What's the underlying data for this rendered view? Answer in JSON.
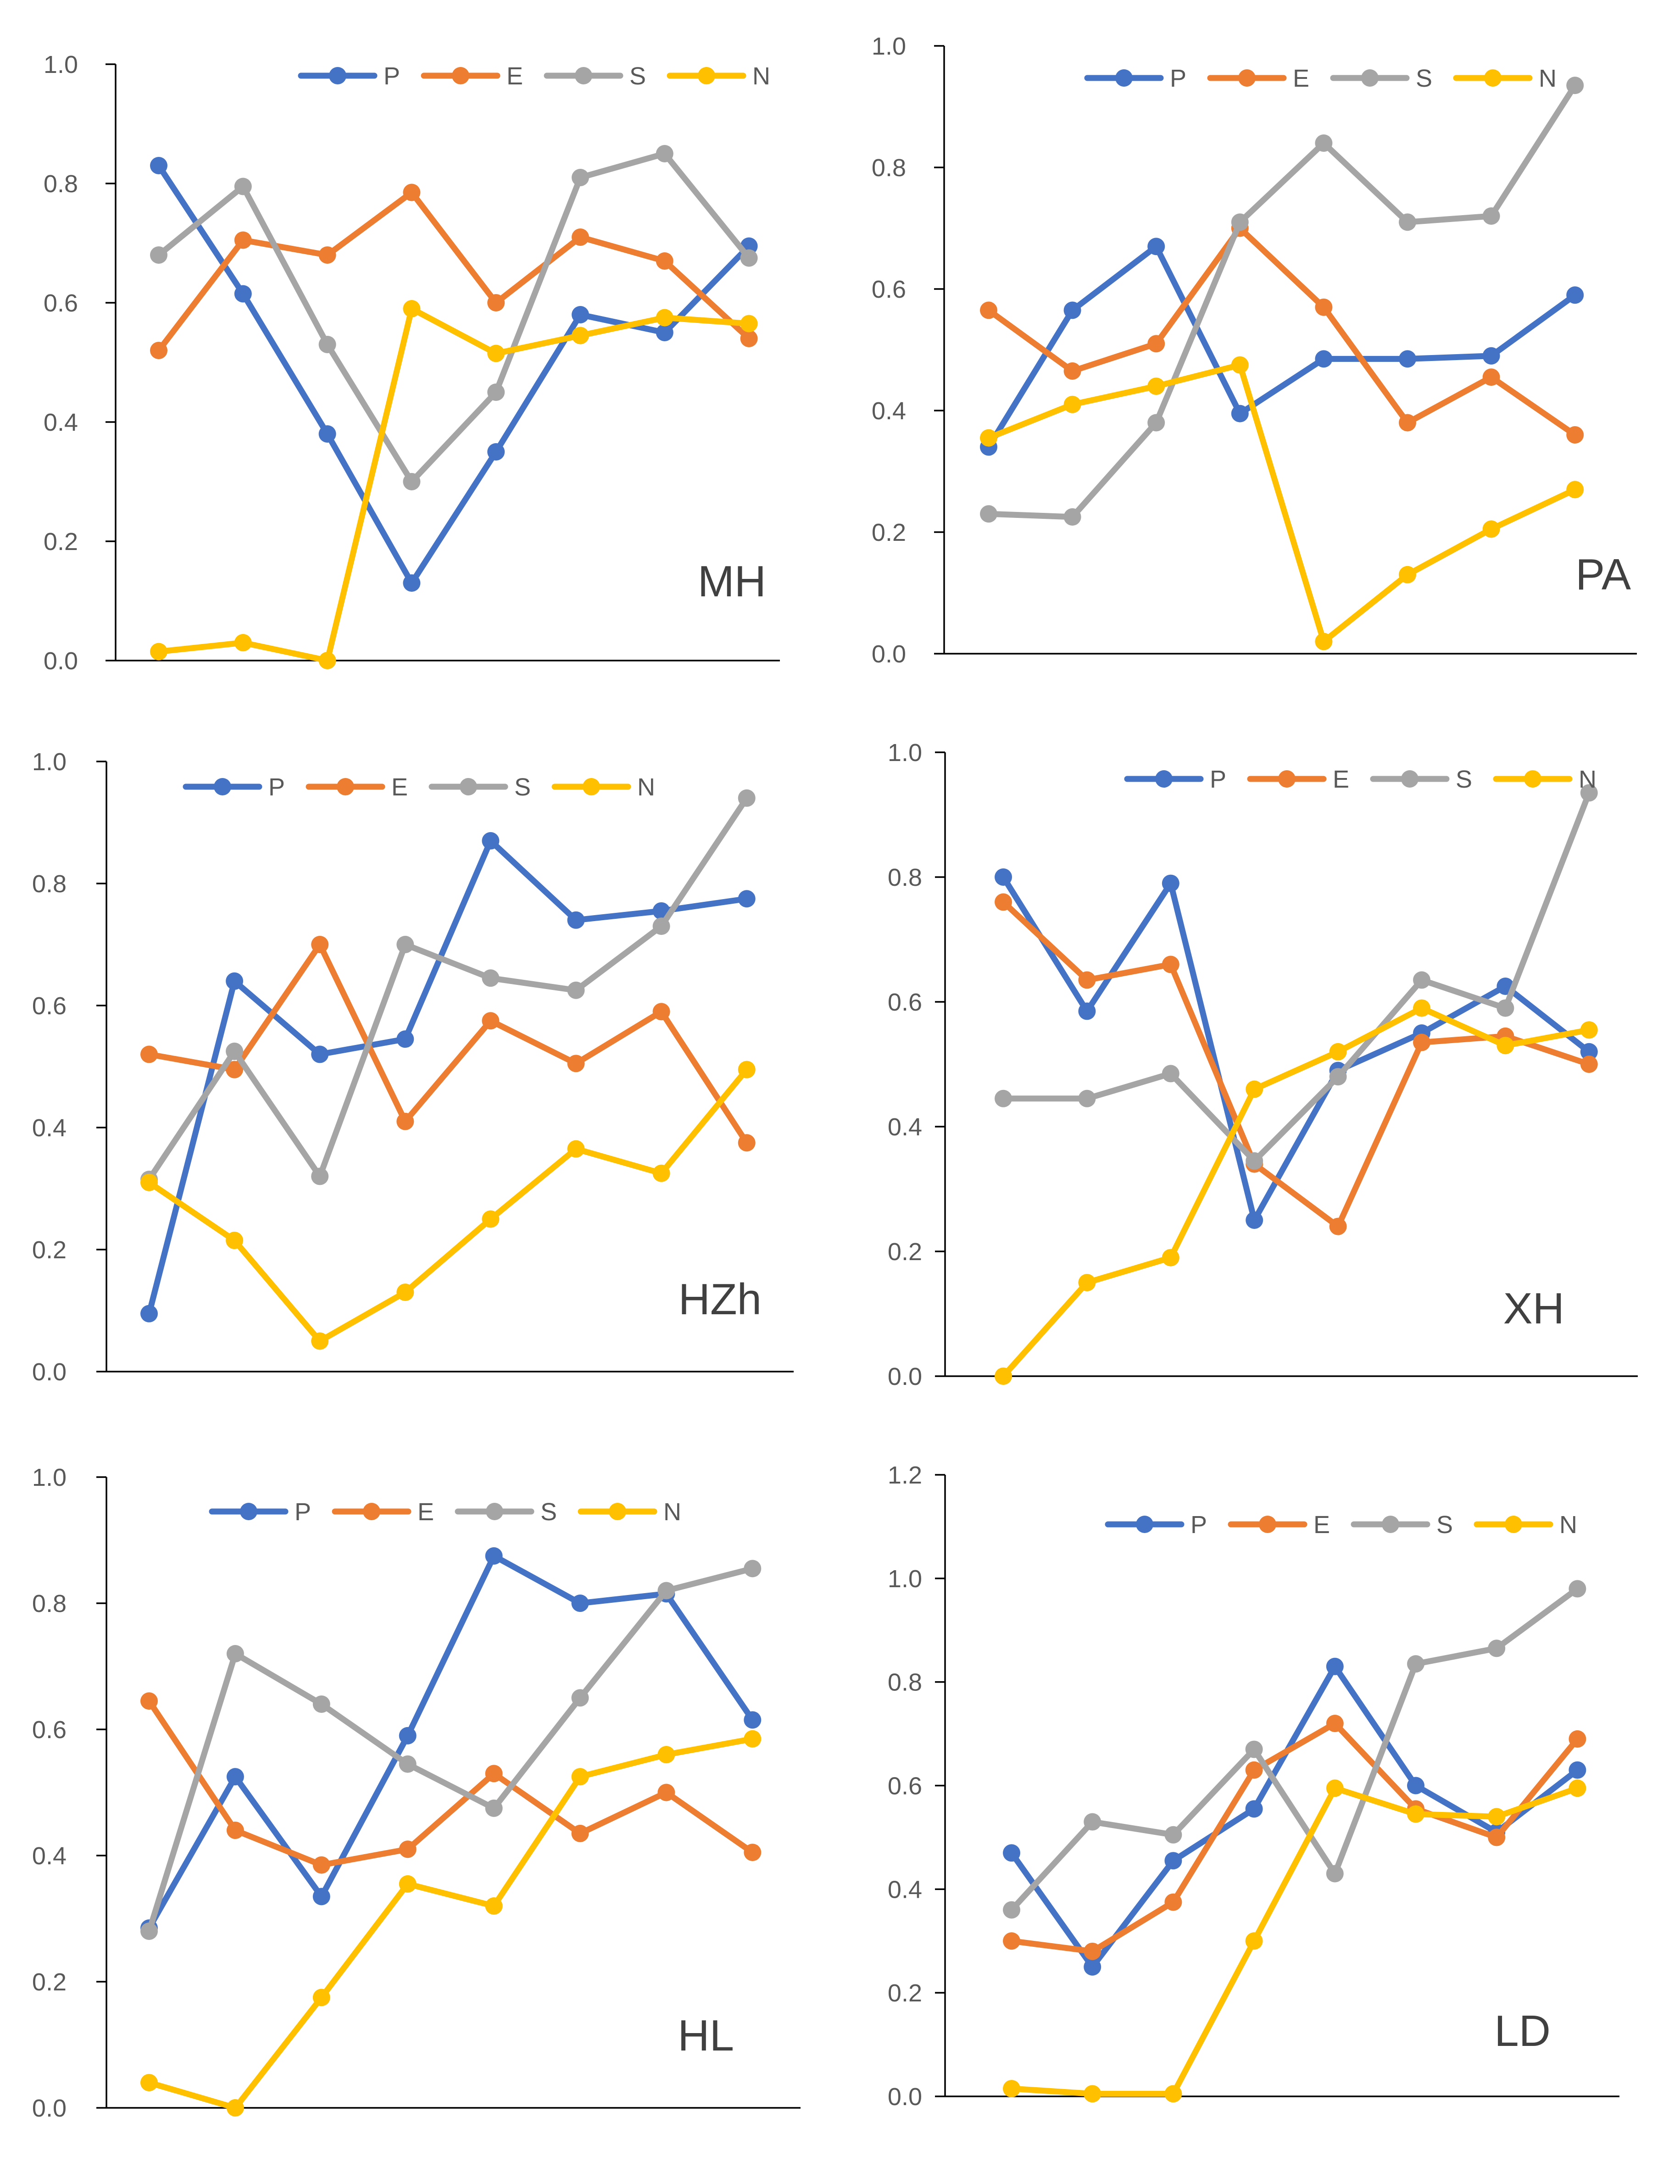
{
  "chart_data": [
    {
      "type": "line",
      "title": "MH",
      "ylim": [
        0,
        1.0
      ],
      "yticks": [
        "0.0",
        "0.2",
        "0.4",
        "0.6",
        "0.8",
        "1.0"
      ],
      "ytick_values": [
        0,
        0.2,
        0.4,
        0.6,
        0.8,
        1.0
      ],
      "legend": "top-right",
      "series": [
        {
          "name": "P",
          "color": "#4472C4",
          "values": [
            0.83,
            0.615,
            0.38,
            0.13,
            0.35,
            0.58,
            0.55,
            0.695
          ]
        },
        {
          "name": "E",
          "color": "#ED7D31",
          "values": [
            0.52,
            0.705,
            0.68,
            0.785,
            0.6,
            0.71,
            0.67,
            0.54
          ]
        },
        {
          "name": "S",
          "color": "#A5A5A5",
          "values": [
            0.68,
            0.795,
            0.53,
            0.3,
            0.45,
            0.81,
            0.85,
            0.675
          ]
        },
        {
          "name": "N",
          "color": "#FFC000",
          "values": [
            0.015,
            0.03,
            0.0,
            0.59,
            0.515,
            0.545,
            0.575,
            0.565
          ]
        }
      ]
    },
    {
      "type": "line",
      "title": "PA",
      "ylim": [
        0,
        1.0
      ],
      "yticks": [
        "0.0",
        "0.2",
        "0.4",
        "0.6",
        "0.8",
        "1.0"
      ],
      "ytick_values": [
        0,
        0.2,
        0.4,
        0.6,
        0.8,
        1.0
      ],
      "legend": "top-right",
      "series": [
        {
          "name": "P",
          "color": "#4472C4",
          "values": [
            0.34,
            0.565,
            0.67,
            0.395,
            0.485,
            0.485,
            0.49,
            0.59
          ]
        },
        {
          "name": "E",
          "color": "#ED7D31",
          "values": [
            0.565,
            0.465,
            0.51,
            0.7,
            0.57,
            0.38,
            0.455,
            0.36
          ]
        },
        {
          "name": "S",
          "color": "#A5A5A5",
          "values": [
            0.23,
            0.225,
            0.38,
            0.71,
            0.84,
            0.71,
            0.72,
            0.935
          ]
        },
        {
          "name": "N",
          "color": "#FFC000",
          "values": [
            0.355,
            0.41,
            0.44,
            0.475,
            0.02,
            0.13,
            0.205,
            0.27
          ]
        }
      ]
    },
    {
      "type": "line",
      "title": "HZh",
      "ylim": [
        0,
        1.0
      ],
      "yticks": [
        "0.0",
        "0.2",
        "0.4",
        "0.6",
        "0.8",
        "1.0"
      ],
      "ytick_values": [
        0,
        0.2,
        0.4,
        0.6,
        0.8,
        1.0
      ],
      "legend": "top-left",
      "series": [
        {
          "name": "P",
          "color": "#4472C4",
          "values": [
            0.095,
            0.64,
            0.52,
            0.545,
            0.87,
            0.74,
            0.755,
            0.775
          ]
        },
        {
          "name": "E",
          "color": "#ED7D31",
          "values": [
            0.52,
            0.495,
            0.7,
            0.41,
            0.575,
            0.505,
            0.59,
            0.375
          ]
        },
        {
          "name": "S",
          "color": "#A5A5A5",
          "values": [
            0.315,
            0.525,
            0.32,
            0.7,
            0.645,
            0.625,
            0.73,
            0.94
          ]
        },
        {
          "name": "N",
          "color": "#FFC000",
          "values": [
            0.31,
            0.215,
            0.05,
            0.13,
            0.25,
            0.365,
            0.325,
            0.495
          ]
        }
      ]
    },
    {
      "type": "line",
      "title": "XH",
      "ylim": [
        0,
        1.0
      ],
      "yticks": [
        "0.0",
        "0.2",
        "0.4",
        "0.6",
        "0.8",
        "1.0"
      ],
      "ytick_values": [
        0,
        0.2,
        0.4,
        0.6,
        0.8,
        1.0
      ],
      "legend": "top-right",
      "series": [
        {
          "name": "P",
          "color": "#4472C4",
          "values": [
            0.8,
            0.585,
            0.79,
            0.25,
            0.49,
            0.55,
            0.625,
            0.52
          ]
        },
        {
          "name": "E",
          "color": "#ED7D31",
          "values": [
            0.76,
            0.635,
            0.66,
            0.34,
            0.24,
            0.535,
            0.545,
            0.5
          ]
        },
        {
          "name": "S",
          "color": "#A5A5A5",
          "values": [
            0.445,
            0.445,
            0.485,
            0.345,
            0.48,
            0.635,
            0.59,
            0.935
          ]
        },
        {
          "name": "N",
          "color": "#FFC000",
          "values": [
            0.0,
            0.15,
            0.19,
            0.46,
            0.52,
            0.59,
            0.53,
            0.555
          ]
        }
      ]
    },
    {
      "type": "line",
      "title": "HL",
      "ylim": [
        0,
        1.0
      ],
      "yticks": [
        "0.0",
        "0.2",
        "0.4",
        "0.6",
        "0.8",
        "1.0"
      ],
      "ytick_values": [
        0,
        0.2,
        0.4,
        0.6,
        0.8,
        1.0
      ],
      "legend": "top-left",
      "series": [
        {
          "name": "P",
          "color": "#4472C4",
          "values": [
            0.285,
            0.525,
            0.335,
            0.59,
            0.875,
            0.8,
            0.815,
            0.615
          ]
        },
        {
          "name": "E",
          "color": "#ED7D31",
          "values": [
            0.645,
            0.44,
            0.385,
            0.41,
            0.53,
            0.435,
            0.5,
            0.405
          ]
        },
        {
          "name": "S",
          "color": "#A5A5A5",
          "values": [
            0.28,
            0.72,
            0.64,
            0.545,
            0.475,
            0.65,
            0.82,
            0.855
          ]
        },
        {
          "name": "N",
          "color": "#FFC000",
          "values": [
            0.04,
            0.0,
            0.175,
            0.355,
            0.32,
            0.525,
            0.56,
            0.585
          ]
        }
      ]
    },
    {
      "type": "line",
      "title": "LD",
      "ylim": [
        0,
        1.2
      ],
      "yticks": [
        "0.0",
        "0.2",
        "0.4",
        "0.6",
        "0.8",
        "1.0",
        "1.2"
      ],
      "ytick_values": [
        0,
        0.2,
        0.4,
        0.6,
        0.8,
        1.0,
        1.2
      ],
      "legend": "top-right",
      "series": [
        {
          "name": "P",
          "color": "#4472C4",
          "values": [
            0.47,
            0.25,
            0.455,
            0.555,
            0.83,
            0.6,
            0.51,
            0.63
          ]
        },
        {
          "name": "E",
          "color": "#ED7D31",
          "values": [
            0.3,
            0.28,
            0.375,
            0.63,
            0.72,
            0.555,
            0.5,
            0.69
          ]
        },
        {
          "name": "S",
          "color": "#A5A5A5",
          "values": [
            0.36,
            0.53,
            0.505,
            0.67,
            0.43,
            0.835,
            0.865,
            0.98
          ]
        },
        {
          "name": "N",
          "color": "#FFC000",
          "values": [
            0.015,
            0.005,
            0.005,
            0.3,
            0.595,
            0.545,
            0.54,
            0.595
          ]
        }
      ]
    }
  ]
}
